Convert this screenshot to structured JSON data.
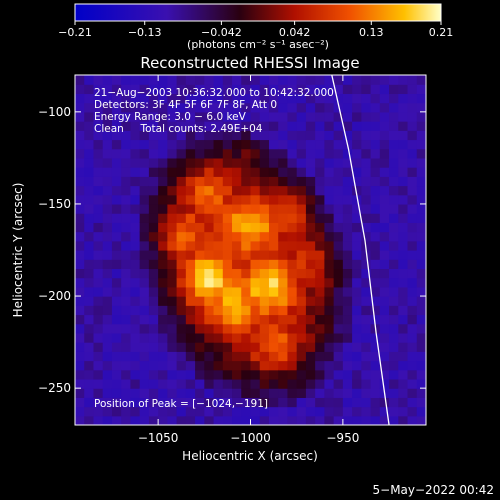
{
  "chart_data": {
    "type": "heatmap",
    "title": "Reconstructed RHESSI Image",
    "xlabel": "Heliocentric X (arcsec)",
    "ylabel": "Heliocentric Y (arcsec)",
    "xlim": [
      -1095,
      -905
    ],
    "ylim": [
      -270,
      -80
    ],
    "xticks": [
      -1050,
      -1000,
      -950
    ],
    "xtick_labels": [
      "−1050",
      "−1000",
      "−950"
    ],
    "yticks": [
      -100,
      -150,
      -200,
      -250
    ],
    "ytick_labels": [
      "−100",
      "−150",
      "−200",
      "−250"
    ],
    "colorbar": {
      "min": -0.21,
      "max": 0.21,
      "ticks": [
        -0.21,
        -0.13,
        -0.042,
        0.042,
        0.13,
        0.21
      ],
      "tick_labels": [
        "−0.21",
        "−0.13",
        "−0.042",
        "0.042",
        "0.13",
        "0.21"
      ],
      "units_label": "(photons cm⁻² s⁻¹ asec⁻²)"
    },
    "annotations": {
      "time_range": "21−Aug−2003 10:36:32.000 to 10:42:32.000",
      "detectors": "Detectors: 3F 4F 5F 6F 7F 8F, Att 0",
      "energy_range": "Energy Range: 3.0 − 6.0 keV",
      "method_counts": "Clean     Total counts: 2.49E+04",
      "peak_position": "Position of Peak = [−1024,−191]"
    },
    "peak": [
      -1024,
      -191
    ],
    "source_blobs": [
      {
        "x": -1024,
        "y": -191,
        "value": 0.21
      },
      {
        "x": -990,
        "y": -195,
        "value": 0.19
      },
      {
        "x": -1000,
        "y": -160,
        "value": 0.17
      },
      {
        "x": -975,
        "y": -150,
        "value": 0.18
      },
      {
        "x": -1025,
        "y": -140,
        "value": 0.16
      },
      {
        "x": -1010,
        "y": -205,
        "value": 0.17
      },
      {
        "x": -985,
        "y": -230,
        "value": 0.14
      },
      {
        "x": -1040,
        "y": -165,
        "value": 0.15
      },
      {
        "x": -960,
        "y": -180,
        "value": 0.13
      },
      {
        "x": -1000,
        "y": -120,
        "value": 0.12
      }
    ],
    "limb_line": [
      [
        -956,
        -80
      ],
      [
        -947,
        -120
      ],
      [
        -938,
        -170
      ],
      [
        -932,
        -220
      ],
      [
        -925,
        -270
      ]
    ],
    "footer_date": "5−May−2022 00:42"
  }
}
